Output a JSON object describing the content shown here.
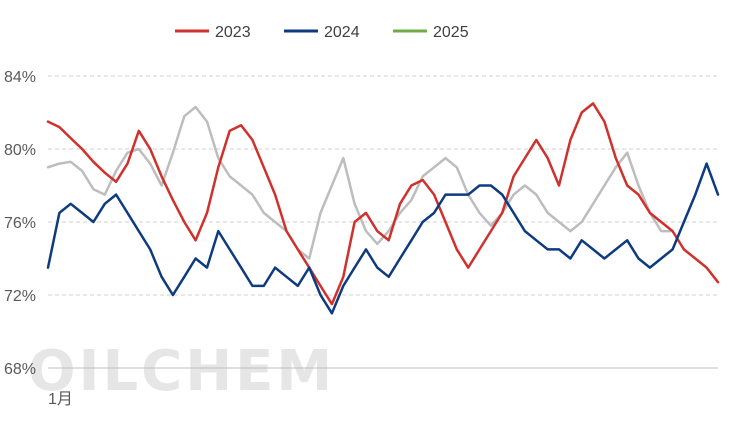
{
  "watermark": "OILCHEM",
  "chart_data": {
    "type": "line",
    "title": "",
    "xlabel": "",
    "ylabel": "",
    "x_tick_labels": [
      "1月"
    ],
    "y_ticks": [
      "68%",
      "72%",
      "76%",
      "80%",
      "84%"
    ],
    "ylim": [
      68,
      84
    ],
    "grid": "horizontal dashed",
    "legend_position": "top",
    "x_points": 60,
    "series": [
      {
        "name": "2023",
        "color": "#D0312D",
        "values": [
          81.5,
          81.2,
          80.6,
          80.0,
          79.3,
          78.7,
          78.2,
          79.2,
          81.0,
          80.0,
          78.5,
          77.2,
          76.0,
          75.0,
          76.5,
          79.0,
          81.0,
          81.3,
          80.5,
          79.0,
          77.5,
          75.5,
          74.5,
          73.5,
          72.5,
          71.5,
          73.0,
          76.0,
          76.5,
          75.5,
          75.0,
          77.0,
          78.0,
          78.3,
          77.5,
          76.0,
          74.5,
          73.5,
          74.5,
          75.5,
          76.5,
          78.5,
          79.5,
          80.5,
          79.5,
          78.0,
          80.5,
          82.0,
          82.5,
          81.5,
          79.5,
          78.0,
          77.5,
          76.5,
          76.0,
          75.5,
          74.5,
          74.0,
          73.5,
          72.7
        ]
      },
      {
        "name": "2024",
        "color": "#0E3B80",
        "values": [
          73.5,
          76.5,
          77.0,
          76.5,
          76.0,
          77.0,
          77.5,
          76.5,
          75.5,
          74.5,
          73.0,
          72.0,
          73.0,
          74.0,
          73.5,
          75.5,
          74.5,
          73.5,
          72.5,
          72.5,
          73.5,
          73.0,
          72.5,
          73.5,
          72.0,
          71.0,
          72.5,
          73.5,
          74.5,
          73.5,
          73.0,
          74.0,
          75.0,
          76.0,
          76.5,
          77.5,
          77.5,
          77.5,
          78.0,
          78.0,
          77.5,
          76.5,
          75.5,
          75.0,
          74.5,
          74.5,
          74.0,
          75.0,
          74.5,
          74.0,
          74.5,
          75.0,
          74.0,
          73.5,
          74.0,
          74.5,
          76.0,
          77.5,
          79.2,
          77.5
        ]
      },
      {
        "name": "2025",
        "color": "#70AD47",
        "values": [
          null,
          null,
          null,
          null,
          null,
          null,
          null,
          null,
          null,
          null,
          null,
          null,
          null,
          null,
          null,
          null,
          null,
          null,
          null,
          null,
          null,
          null,
          null,
          null,
          null,
          null,
          null,
          null,
          null,
          null,
          null,
          null,
          null,
          null,
          null,
          null,
          null,
          null,
          null,
          null,
          null,
          null,
          null,
          null,
          null,
          null,
          null,
          null,
          null,
          null,
          null,
          null,
          null,
          null,
          null,
          null,
          null,
          null,
          null,
          null
        ]
      },
      {
        "name": "",
        "color": "#BDBDBD",
        "values": [
          79.0,
          79.2,
          79.3,
          78.8,
          77.8,
          77.5,
          78.8,
          79.8,
          80.0,
          79.2,
          78.0,
          79.8,
          81.8,
          82.3,
          81.5,
          79.5,
          78.5,
          78.0,
          77.5,
          76.5,
          76.0,
          75.5,
          74.5,
          74.0,
          76.5,
          78.0,
          79.5,
          77.0,
          75.5,
          74.8,
          75.5,
          76.5,
          77.2,
          78.5,
          79.0,
          79.5,
          79.0,
          77.5,
          76.5,
          75.8,
          76.5,
          77.5,
          78.0,
          77.5,
          76.5,
          76.0,
          75.5,
          76.0,
          77.0,
          78.0,
          79.0,
          79.8,
          78.0,
          76.5,
          75.5,
          75.5,
          null,
          null,
          null,
          null
        ]
      }
    ]
  }
}
